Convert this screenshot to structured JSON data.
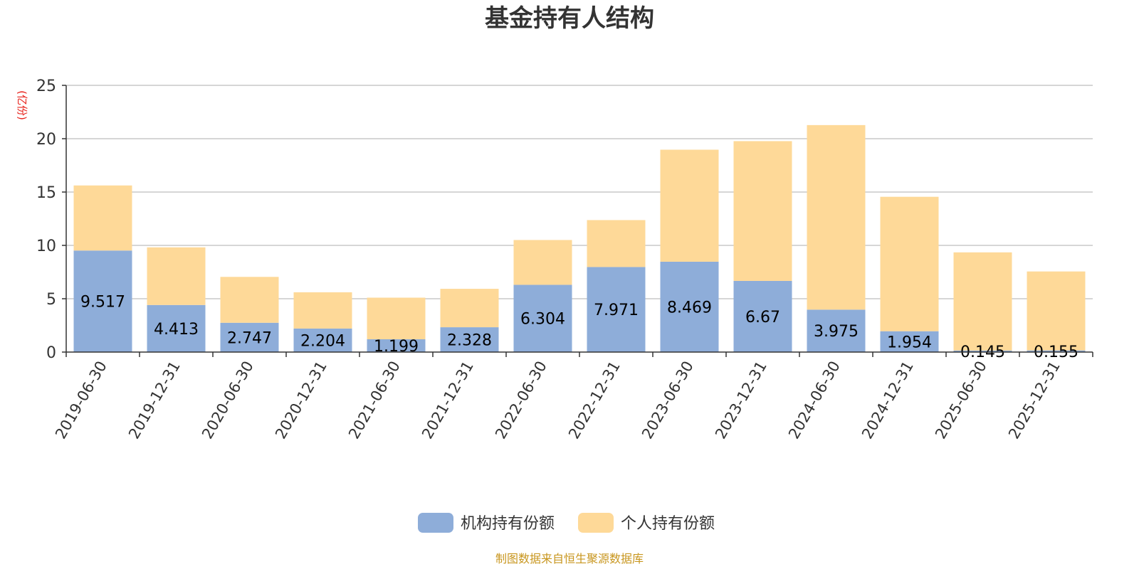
{
  "chart_data": {
    "type": "bar",
    "stacked": true,
    "title": "基金持有人结构",
    "ylabel": "(亿份)",
    "ylim": [
      0,
      25
    ],
    "yticks": [
      0,
      5,
      10,
      15,
      20,
      25
    ],
    "grid": true,
    "legend_position": "bottom",
    "categories": [
      "2019-06-30",
      "2019-12-31",
      "2020-06-30",
      "2020-12-31",
      "2021-06-30",
      "2021-12-31",
      "2022-06-30",
      "2022-12-31",
      "2023-06-30",
      "2023-12-31",
      "2024-06-30",
      "2024-12-31",
      "2025-06-30",
      "2025-12-31"
    ],
    "series": [
      {
        "name": "机构持有份额",
        "color": "#8eadd9",
        "values": [
          9.517,
          4.413,
          2.747,
          2.204,
          1.199,
          2.328,
          6.304,
          7.971,
          8.469,
          6.67,
          3.975,
          1.954,
          0.145,
          0.155
        ],
        "labels": [
          "9.517",
          "4.413",
          "2.747",
          "2.204",
          "1.199",
          "2.328",
          "6.304",
          "7.971",
          "8.469",
          "6.67",
          "3.975",
          "1.954",
          "0.145",
          "0.155"
        ]
      },
      {
        "name": "个人持有份额",
        "color": "#fed998",
        "values": [
          6.1,
          5.4,
          4.3,
          3.4,
          3.9,
          3.6,
          4.2,
          4.4,
          10.5,
          13.1,
          17.3,
          12.6,
          9.2,
          7.4
        ]
      }
    ]
  },
  "source_note": "制图数据来自恒生聚源数据库"
}
